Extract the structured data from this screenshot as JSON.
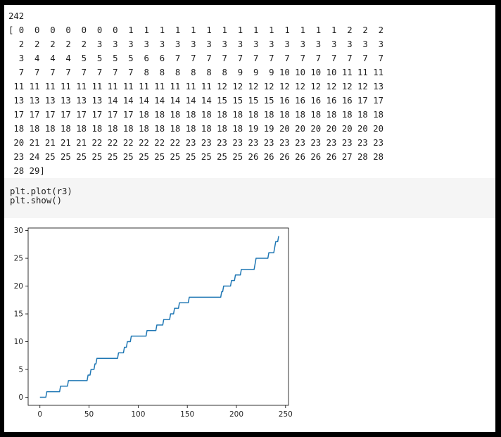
{
  "notebook": {
    "output": {
      "length_line": "242",
      "array_text": "[ 0  0  0  0  0  0  0  1  1  1  1  1  1  1  1  1  1  1  1  1  1  2  2  2\n  2  2  2  2  2  3  3  3  3  3  3  3  3  3  3  3  3  3  3  3  3  3  3  3\n  3  4  4  4  5  5  5  5  6  6  7  7  7  7  7  7  7  7  7  7  7  7  7  7\n  7  7  7  7  7  7  7  7  8  8  8  8  8  8  9  9  9 10 10 10 10 11 11 11\n 11 11 11 11 11 11 11 11 11 11 11 11 11 12 12 12 12 12 12 12 12 12 12 13\n 13 13 13 13 13 13 14 14 14 14 14 14 14 15 15 15 15 16 16 16 16 16 17 17\n 17 17 17 17 17 17 17 17 18 18 18 18 18 18 18 18 18 18 18 18 18 18 18 18\n 18 18 18 18 18 18 18 18 18 18 18 18 18 18 18 19 19 20 20 20 20 20 20 20\n 20 21 21 21 21 22 22 22 22 22 22 23 23 23 23 23 23 23 23 23 23 23 23 23\n 23 24 25 25 25 25 25 25 25 25 25 25 25 25 25 26 26 26 26 26 26 27 28 28\n 28 29]"
    },
    "code_cell": {
      "source": "plt.plot(r3)\nplt.show()"
    }
  },
  "chart_data": {
    "type": "line",
    "title": "",
    "xlabel": "",
    "ylabel": "",
    "xlim": [
      -12,
      253
    ],
    "ylim": [
      -1.45,
      30.45
    ],
    "x_ticks": [
      0,
      50,
      100,
      150,
      200,
      250
    ],
    "y_ticks": [
      0,
      5,
      10,
      15,
      20,
      25,
      30
    ],
    "grid": false,
    "legend": "none",
    "series": [
      {
        "color": "#1f77b4",
        "values": [
          0,
          0,
          0,
          0,
          0,
          0,
          0,
          1,
          1,
          1,
          1,
          1,
          1,
          1,
          1,
          1,
          1,
          1,
          1,
          1,
          1,
          2,
          2,
          2,
          2,
          2,
          2,
          2,
          2,
          3,
          3,
          3,
          3,
          3,
          3,
          3,
          3,
          3,
          3,
          3,
          3,
          3,
          3,
          3,
          3,
          3,
          3,
          3,
          3,
          4,
          4,
          4,
          5,
          5,
          5,
          5,
          6,
          6,
          7,
          7,
          7,
          7,
          7,
          7,
          7,
          7,
          7,
          7,
          7,
          7,
          7,
          7,
          7,
          7,
          7,
          7,
          7,
          7,
          7,
          7,
          8,
          8,
          8,
          8,
          8,
          8,
          9,
          9,
          9,
          10,
          10,
          10,
          10,
          11,
          11,
          11,
          11,
          11,
          11,
          11,
          11,
          11,
          11,
          11,
          11,
          11,
          11,
          11,
          11,
          12,
          12,
          12,
          12,
          12,
          12,
          12,
          12,
          12,
          12,
          13,
          13,
          13,
          13,
          13,
          13,
          13,
          14,
          14,
          14,
          14,
          14,
          14,
          14,
          15,
          15,
          15,
          15,
          16,
          16,
          16,
          16,
          16,
          17,
          17,
          17,
          17,
          17,
          17,
          17,
          17,
          17,
          17,
          18,
          18,
          18,
          18,
          18,
          18,
          18,
          18,
          18,
          18,
          18,
          18,
          18,
          18,
          18,
          18,
          18,
          18,
          18,
          18,
          18,
          18,
          18,
          18,
          18,
          18,
          18,
          18,
          18,
          18,
          18,
          18,
          18,
          19,
          19,
          20,
          20,
          20,
          20,
          20,
          20,
          20,
          20,
          21,
          21,
          21,
          21,
          22,
          22,
          22,
          22,
          22,
          22,
          23,
          23,
          23,
          23,
          23,
          23,
          23,
          23,
          23,
          23,
          23,
          23,
          23,
          23,
          24,
          25,
          25,
          25,
          25,
          25,
          25,
          25,
          25,
          25,
          25,
          25,
          25,
          25,
          26,
          26,
          26,
          26,
          26,
          26,
          27,
          28,
          28,
          28,
          29
        ]
      }
    ]
  }
}
